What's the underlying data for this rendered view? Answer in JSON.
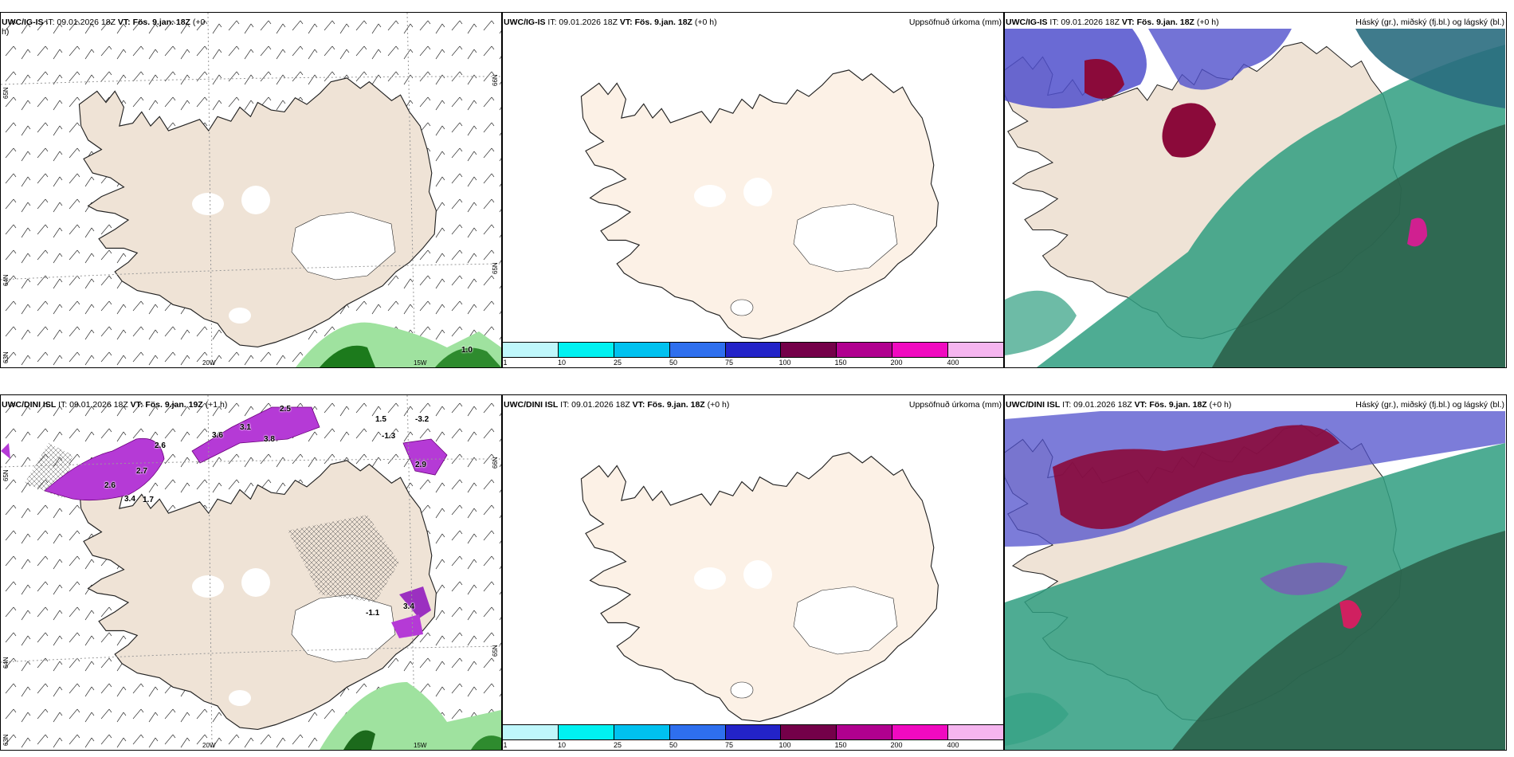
{
  "colors": {
    "land": "#efe3d6",
    "land_light": "#fcf1e6",
    "ice": "#ffffff",
    "coast": "#222222",
    "precip": [
      "#bff7fb",
      "#00f1f1",
      "#00c1ef",
      "#2e6fee",
      "#2323c8",
      "#740049",
      "#b0008f",
      "#f00ac0",
      "#f5b5ef"
    ]
  },
  "row1": {
    "wind_panel": {
      "model": "UWC/IG-IS",
      "it_label": "IT: 09.01.2026 18Z",
      "vt_label": "VT: Fös. 9.jan. 18Z",
      "lead": "(+0",
      "lead_cont": "h)",
      "lat_labels": [
        "65N",
        "64N",
        "63N"
      ],
      "lon_labels": [
        "20W",
        "15W"
      ],
      "right_lat_labels": [
        "66N",
        "65N"
      ],
      "corner_label": "25W",
      "values": [
        "1.0"
      ]
    },
    "precip_panel": {
      "model": "UWC/IG-IS",
      "it_label": "IT: 09.01.2026 18Z",
      "vt_label": "VT: Fös. 9.jan. 18Z",
      "lead": "(+0 h)",
      "title": "Uppsöfnuð úrkoma (mm)",
      "ticks": [
        "1",
        "10",
        "25",
        "50",
        "75",
        "100",
        "150",
        "200",
        "400"
      ]
    },
    "cloud_panel": {
      "model": "UWC/IG-IS",
      "it_label": "IT: 09.01.2026 18Z",
      "vt_label": "VT: Fös. 9.jan. 18Z",
      "lead": "(+0 h)",
      "title": "Háský (gr.), miðský (fj.bl.) og lágský (bl.)"
    }
  },
  "row2": {
    "wind_panel": {
      "model": "UWC/DINI ISL",
      "it_label": "IT: 09.01.2026 18Z",
      "vt_label": "VT: Fös. 9.jan. 19Z",
      "lead": "(+1 h)",
      "lat_labels": [
        "65N",
        "64N",
        "63N"
      ],
      "lon_labels": [
        "20W",
        "15W"
      ],
      "right_lat_labels": [
        "66N",
        "65N"
      ],
      "corner_label": "25W",
      "values": [
        "2.6",
        "3.4",
        "3.1",
        "2.7",
        "2.6",
        "1.7",
        "2.5",
        "1.5",
        "-1.3",
        "3.8",
        "-3.2",
        "3.6",
        "-1.1",
        "2.9",
        "3.4"
      ]
    },
    "precip_panel": {
      "model": "UWC/DINI ISL",
      "it_label": "IT: 09.01.2026 18Z",
      "vt_label": "VT: Fös. 9.jan. 18Z",
      "lead": "(+0 h)",
      "title": "Uppsöfnuð úrkoma (mm)",
      "ticks": [
        "1",
        "10",
        "25",
        "50",
        "75",
        "100",
        "150",
        "200",
        "400"
      ]
    },
    "cloud_panel": {
      "model": "UWC/DINI ISL",
      "it_label": "IT: 09.01.2026 18Z",
      "vt_label": "VT: Fös. 9.jan. 18Z",
      "lead": "(+0 h)",
      "title": "Háský (gr.), miðský (fj.bl.) og lágský (bl.)"
    }
  }
}
